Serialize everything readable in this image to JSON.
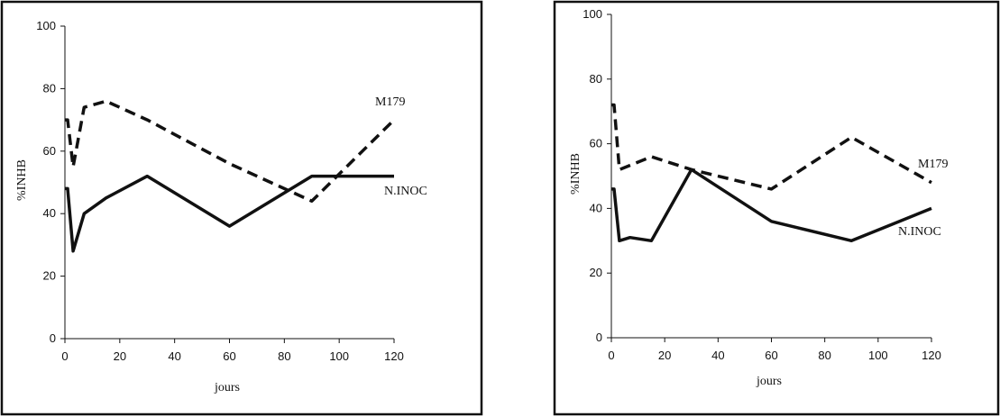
{
  "chart_data": [
    {
      "type": "line",
      "title": "",
      "xlabel": "jours",
      "ylabel": "%INHB",
      "xlim": [
        0,
        120
      ],
      "ylim": [
        0,
        100
      ],
      "xticks": [
        0,
        20,
        40,
        60,
        80,
        100,
        120
      ],
      "yticks": [
        0,
        20,
        40,
        60,
        80,
        100
      ],
      "grid": false,
      "legend": "inline labels",
      "series": [
        {
          "name": "M179",
          "style": "dashed",
          "x": [
            0,
            1,
            3,
            7,
            15,
            30,
            60,
            80,
            90,
            120
          ],
          "y": [
            70,
            70,
            55,
            74,
            76,
            70,
            56,
            48,
            44,
            70
          ]
        },
        {
          "name": "N.INOC",
          "style": "solid",
          "x": [
            0,
            1,
            3,
            7,
            15,
            30,
            60,
            90,
            120
          ],
          "y": [
            48,
            48,
            28,
            40,
            45,
            52,
            36,
            52,
            52
          ]
        }
      ]
    },
    {
      "type": "line",
      "title": "",
      "xlabel": "jours",
      "ylabel": "%INHB",
      "xlim": [
        0,
        120
      ],
      "ylim": [
        0,
        100
      ],
      "xticks": [
        0,
        20,
        40,
        60,
        80,
        100,
        120
      ],
      "yticks": [
        0,
        20,
        40,
        60,
        80,
        100
      ],
      "grid": false,
      "legend": "inline labels",
      "series": [
        {
          "name": "M179",
          "style": "dashed",
          "x": [
            0,
            1,
            3,
            15,
            30,
            60,
            90,
            120
          ],
          "y": [
            72,
            72,
            52,
            56,
            52,
            46,
            62,
            48
          ]
        },
        {
          "name": "N.INOC",
          "style": "solid",
          "x": [
            0,
            1,
            3,
            7,
            15,
            30,
            60,
            90,
            120
          ],
          "y": [
            46,
            46,
            30,
            31,
            30,
            52,
            36,
            30,
            40
          ]
        }
      ]
    }
  ]
}
